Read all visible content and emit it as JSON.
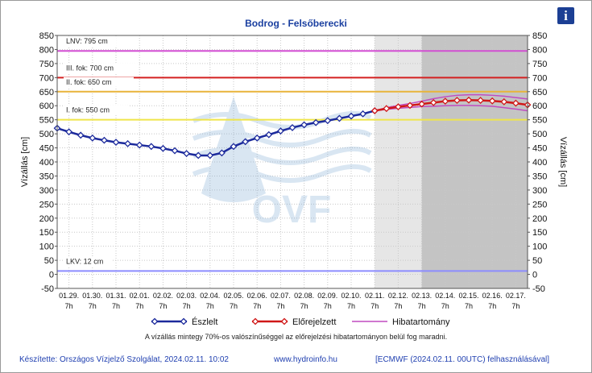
{
  "header": {
    "title": "Bodrog - Felsőberecki",
    "info_icon": "i"
  },
  "chart_data": {
    "type": "line",
    "title": "Bodrog - Felsőberecki",
    "ylabel_left": "Vízállás [cm]",
    "ylabel_right": "Vízállás [cm]",
    "ylim": [
      -50,
      850
    ],
    "yticks": [
      -50,
      0,
      50,
      100,
      150,
      200,
      250,
      300,
      350,
      400,
      450,
      500,
      550,
      600,
      650,
      700,
      750,
      800,
      850
    ],
    "xlim": [
      0,
      20
    ],
    "xticks": [
      {
        "x": 0.5,
        "d": "01.29.",
        "h": "7h"
      },
      {
        "x": 1.5,
        "d": "01.30.",
        "h": "7h"
      },
      {
        "x": 2.5,
        "d": "01.31.",
        "h": "7h"
      },
      {
        "x": 3.5,
        "d": "02.01.",
        "h": "7h"
      },
      {
        "x": 4.5,
        "d": "02.02.",
        "h": "7h"
      },
      {
        "x": 5.5,
        "d": "02.03.",
        "h": "7h"
      },
      {
        "x": 6.5,
        "d": "02.04.",
        "h": "7h"
      },
      {
        "x": 7.5,
        "d": "02.05.",
        "h": "7h"
      },
      {
        "x": 8.5,
        "d": "02.06.",
        "h": "7h"
      },
      {
        "x": 9.5,
        "d": "02.07.",
        "h": "7h"
      },
      {
        "x": 10.5,
        "d": "02.08.",
        "h": "7h"
      },
      {
        "x": 11.5,
        "d": "02.09.",
        "h": "7h"
      },
      {
        "x": 12.5,
        "d": "02.10.",
        "h": "7h"
      },
      {
        "x": 13.5,
        "d": "02.11.",
        "h": "7h"
      },
      {
        "x": 14.5,
        "d": "02.12.",
        "h": "7h"
      },
      {
        "x": 15.5,
        "d": "02.13.",
        "h": "7h"
      },
      {
        "x": 16.5,
        "d": "02.14.",
        "h": "7h"
      },
      {
        "x": 17.5,
        "d": "02.15.",
        "h": "7h"
      },
      {
        "x": 18.5,
        "d": "02.16.",
        "h": "7h"
      },
      {
        "x": 19.5,
        "d": "02.17.",
        "h": "7h"
      }
    ],
    "forecast_shade": [
      {
        "from": 13.5,
        "to": 15.5,
        "color": "#e6e6e6"
      },
      {
        "from": 15.5,
        "to": 20,
        "color": "#c4c4c4"
      }
    ],
    "thresholds": [
      {
        "label": "LNV: 795 cm",
        "value": 795,
        "color": "#d24fd2"
      },
      {
        "label": "III. fok: 700 cm",
        "value": 700,
        "color": "#d42020"
      },
      {
        "label": "II. fok: 650 cm",
        "value": 650,
        "color": "#e8b43a"
      },
      {
        "label": "I. fok: 550 cm",
        "value": 550,
        "color": "#efe54a"
      },
      {
        "label": "LKV: 12 cm",
        "value": 12,
        "color": "#8c8cff"
      }
    ],
    "series": [
      {
        "name": "Észlelt",
        "color": "#1c2a9c",
        "x": [
          0,
          0.5,
          1,
          1.5,
          2,
          2.5,
          3,
          3.5,
          4,
          4.5,
          5,
          5.5,
          6,
          6.5,
          7,
          7.5,
          8,
          8.5,
          9,
          9.5,
          10,
          10.5,
          11,
          11.5,
          12,
          12.5,
          13,
          13.5
        ],
        "values": [
          520,
          507,
          495,
          485,
          477,
          470,
          465,
          460,
          455,
          448,
          440,
          430,
          423,
          423,
          432,
          455,
          472,
          485,
          497,
          510,
          522,
          532,
          540,
          547,
          555,
          563,
          571,
          582
        ]
      },
      {
        "name": "Előrejelzett",
        "color": "#d01818",
        "x": [
          13.5,
          14,
          14.5,
          15,
          15.5,
          16,
          16.5,
          17,
          17.5,
          18,
          18.5,
          19,
          19.5,
          20
        ],
        "values": [
          582,
          590,
          596,
          601,
          606,
          611,
          616,
          619,
          620,
          619,
          617,
          614,
          609,
          603
        ]
      }
    ],
    "error_band": {
      "name": "Hibatartomány",
      "color": "#c14bc1",
      "x": [
        13.5,
        14,
        14.5,
        15,
        15.5,
        16,
        16.5,
        17,
        17.5,
        18,
        18.5,
        19,
        19.5,
        20
      ],
      "upper": [
        582,
        593,
        601,
        608,
        616,
        625,
        632,
        637,
        639,
        639,
        637,
        634,
        629,
        624
      ],
      "lower": [
        582,
        587,
        591,
        594,
        597,
        598,
        600,
        601,
        601,
        600,
        598,
        593,
        588,
        582
      ]
    },
    "legend": [
      "Észlelt",
      "Előrejelzett",
      "Hibatartomány"
    ],
    "watermark": "OVF"
  },
  "footnote": "A vízállás mintegy 70%-os valószínűséggel az előrejelzési hibatartományon belül fog maradni.",
  "footer": {
    "author": "Készítette: Országos Vízjelző Szolgálat, 2024.02.11. 10:02",
    "website": "www.hydroinfo.hu",
    "source": "[ECMWF (2024.02.11. 00UTC) felhasználásával]"
  }
}
